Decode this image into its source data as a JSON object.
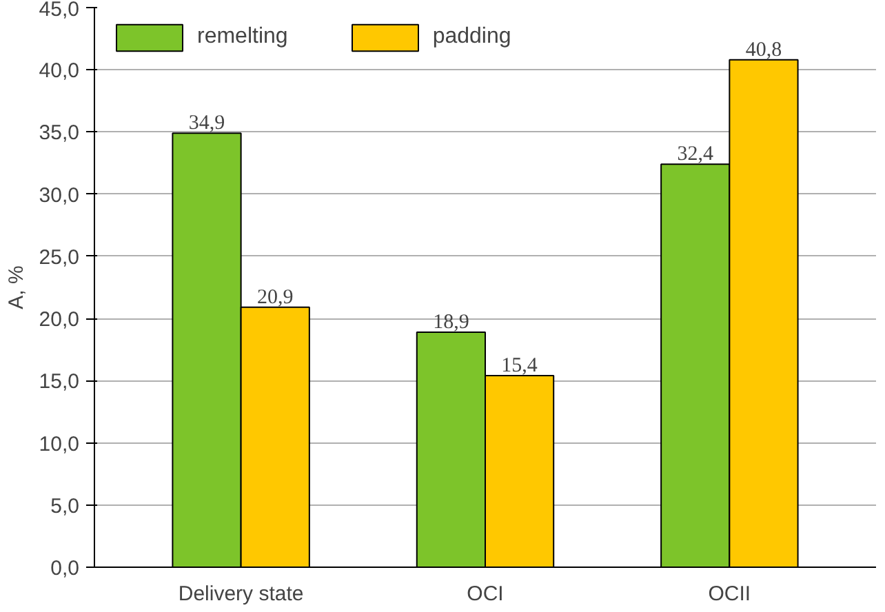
{
  "chart_data": {
    "type": "bar",
    "ylabel": "A, %",
    "categories": [
      "Delivery state",
      "OCI",
      "OCII"
    ],
    "series": [
      {
        "name": "remelting",
        "color": "#7dc42a",
        "values": [
          34.9,
          18.9,
          32.4
        ],
        "value_labels": [
          "34,9",
          "18,9",
          "32,4"
        ]
      },
      {
        "name": "padding",
        "color": "#ffc800",
        "values": [
          20.9,
          15.4,
          40.8
        ],
        "value_labels": [
          "20,9",
          "15,4",
          "40,8"
        ]
      }
    ],
    "ylim": [
      0,
      45
    ],
    "yticks": [
      {
        "value": 0,
        "label": "0,0"
      },
      {
        "value": 5,
        "label": "5,0"
      },
      {
        "value": 10,
        "label": "10,0"
      },
      {
        "value": 15,
        "label": "15,0"
      },
      {
        "value": 20,
        "label": "20,0"
      },
      {
        "value": 25,
        "label": "25,0"
      },
      {
        "value": 30,
        "label": "30,0"
      },
      {
        "value": 35,
        "label": "35,0"
      },
      {
        "value": 40,
        "label": "40,0"
      },
      {
        "value": 45,
        "label": "45,0"
      }
    ],
    "grid": "y",
    "legend": "top left"
  }
}
